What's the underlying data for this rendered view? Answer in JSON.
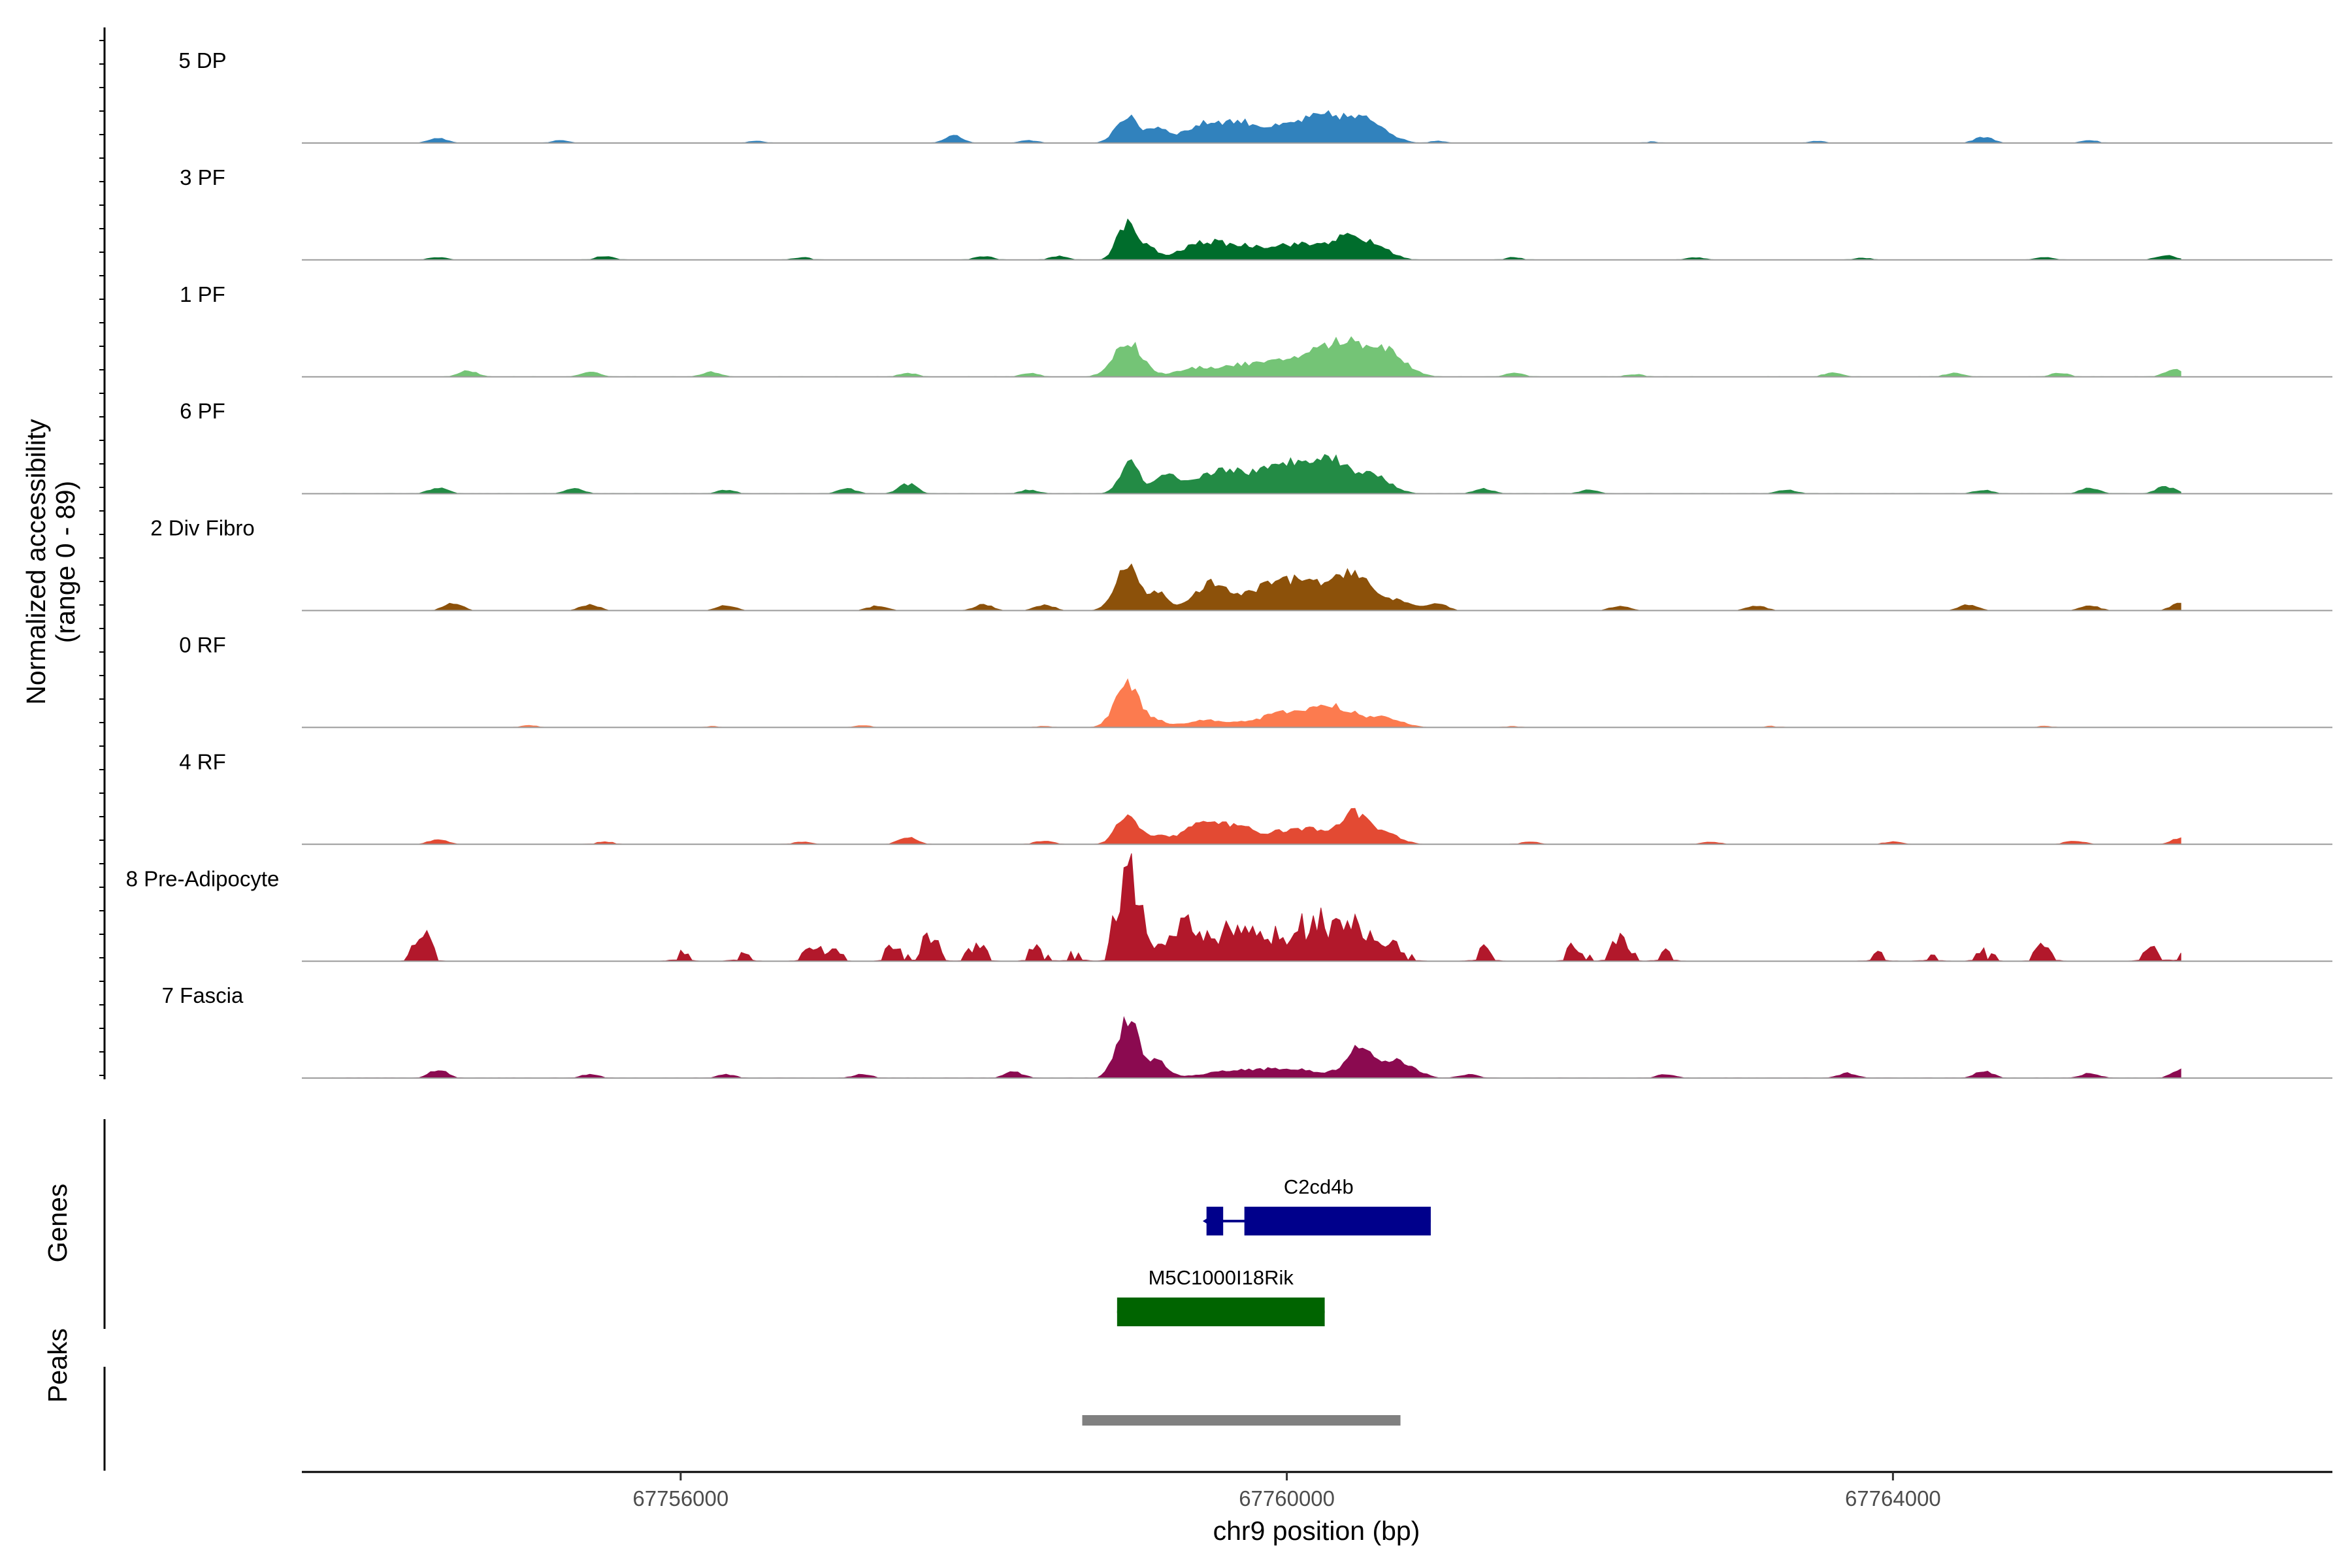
{
  "chart_data": {
    "type": "area",
    "title": "",
    "ylabel_line1": "Normalized accessibility",
    "ylabel_line2": "(range 0 - 89)",
    "ylim": [
      0,
      89
    ],
    "xlabel": "chr9 position (bp)",
    "x_range": [
      67753500,
      67766900
    ],
    "data_x_range": [
      67753700,
      67765900
    ],
    "x_ticks": [
      {
        "value": 67756000,
        "label": "67756000"
      },
      {
        "value": 67760000,
        "label": "67760000"
      },
      {
        "value": 67764000,
        "label": "67764000"
      }
    ],
    "tracks": [
      {
        "name": "5 DP",
        "color": "#3182bd",
        "background": [
          [
            67754400,
            4
          ],
          [
            67755200,
            2
          ],
          [
            67756500,
            1.5
          ],
          [
            67757800,
            6
          ],
          [
            67758300,
            2
          ],
          [
            67761000,
            1.5
          ],
          [
            67762400,
            1
          ],
          [
            67763500,
            1.5
          ],
          [
            67764600,
            5
          ],
          [
            67765300,
            2
          ]
        ],
        "peaks": [
          [
            67758940,
            22,
            70
          ],
          [
            67759140,
            12,
            70
          ],
          [
            67759480,
            16,
            150
          ],
          [
            67759720,
            9,
            110
          ],
          [
            67760050,
            13,
            220
          ],
          [
            67760350,
            17,
            180
          ],
          [
            67760580,
            10,
            100
          ]
        ]
      },
      {
        "name": "3 PF",
        "color": "#006d2c",
        "background": [
          [
            67754400,
            2
          ],
          [
            67755500,
            3
          ],
          [
            67756800,
            2
          ],
          [
            67758000,
            3
          ],
          [
            67758500,
            3
          ],
          [
            67761500,
            2
          ],
          [
            67762700,
            2
          ],
          [
            67763800,
            1.5
          ],
          [
            67765000,
            2
          ],
          [
            67765800,
            4
          ]
        ],
        "peaks": [
          [
            67758940,
            30,
            60
          ],
          [
            67759080,
            10,
            60
          ],
          [
            67759450,
            14,
            140
          ],
          [
            67759700,
            6,
            120
          ],
          [
            67760050,
            13,
            220
          ],
          [
            67760420,
            16,
            120
          ],
          [
            67760620,
            7,
            90
          ]
        ]
      },
      {
        "name": "1 PF",
        "color": "#74c476",
        "background": [
          [
            67754600,
            5
          ],
          [
            67755400,
            4
          ],
          [
            67756200,
            4
          ],
          [
            67757500,
            3
          ],
          [
            67758300,
            3
          ],
          [
            67761500,
            3
          ],
          [
            67762300,
            2
          ],
          [
            67763600,
            3
          ],
          [
            67764400,
            3
          ],
          [
            67765100,
            3
          ],
          [
            67765850,
            6
          ]
        ],
        "peaks": [
          [
            67758950,
            30,
            90
          ],
          [
            67759420,
            7,
            140
          ],
          [
            67759700,
            6,
            120
          ],
          [
            67760000,
            11,
            200
          ],
          [
            67760400,
            28,
            200
          ],
          [
            67760680,
            12,
            110
          ]
        ]
      },
      {
        "name": "6 PF",
        "color": "#238b45",
        "background": [
          [
            67754400,
            5
          ],
          [
            67755300,
            4
          ],
          [
            67756300,
            3
          ],
          [
            67757100,
            4
          ],
          [
            67757500,
            8
          ],
          [
            67758300,
            3
          ],
          [
            67761300,
            4
          ],
          [
            67762000,
            3
          ],
          [
            67763300,
            3
          ],
          [
            67764600,
            3
          ],
          [
            67765300,
            5
          ],
          [
            67765800,
            6
          ]
        ],
        "peaks": [
          [
            67758960,
            27,
            60
          ],
          [
            67759200,
            14,
            80
          ],
          [
            67759550,
            17,
            150
          ],
          [
            67760000,
            22,
            220
          ],
          [
            67760300,
            21,
            160
          ],
          [
            67760600,
            11,
            100
          ]
        ]
      },
      {
        "name": "2 Div Fibro",
        "color": "#8c510a",
        "background": [
          [
            67754500,
            6
          ],
          [
            67755400,
            5
          ],
          [
            67756300,
            4
          ],
          [
            67757300,
            4
          ],
          [
            67758000,
            5
          ],
          [
            67758400,
            5
          ],
          [
            67761000,
            6
          ],
          [
            67762200,
            4
          ],
          [
            67763100,
            4
          ],
          [
            67764500,
            5
          ],
          [
            67765300,
            4
          ],
          [
            67765900,
            7
          ]
        ],
        "peaks": [
          [
            67758950,
            35,
            80
          ],
          [
            67759160,
            14,
            60
          ],
          [
            67759500,
            22,
            110
          ],
          [
            67759850,
            14,
            140
          ],
          [
            67760150,
            24,
            190
          ],
          [
            67760450,
            27,
            90
          ],
          [
            67760700,
            9,
            110
          ]
        ]
      },
      {
        "name": "0 RF",
        "color": "#fc7b4f",
        "background": [
          [
            67755000,
            1.5
          ],
          [
            67756200,
            1
          ],
          [
            67757200,
            1.5
          ],
          [
            67758400,
            1
          ],
          [
            67761500,
            1
          ],
          [
            67763200,
            1
          ],
          [
            67765000,
            1
          ]
        ],
        "peaks": [
          [
            67758950,
            37,
            80
          ],
          [
            67759150,
            5,
            60
          ],
          [
            67759480,
            6,
            140
          ],
          [
            67760000,
            12,
            180
          ],
          [
            67760320,
            15,
            140
          ],
          [
            67760650,
            8,
            110
          ]
        ]
      },
      {
        "name": "4 RF",
        "color": "#e34a33",
        "background": [
          [
            67754400,
            4
          ],
          [
            67755500,
            2
          ],
          [
            67756800,
            2
          ],
          [
            67757500,
            6
          ],
          [
            67758400,
            3
          ],
          [
            67761600,
            2
          ],
          [
            67762800,
            2
          ],
          [
            67764000,
            2
          ],
          [
            67765200,
            3
          ],
          [
            67765900,
            5
          ]
        ],
        "peaks": [
          [
            67758950,
            25,
            70
          ],
          [
            67759150,
            7,
            60
          ],
          [
            67759450,
            18,
            130
          ],
          [
            67759700,
            10,
            100
          ],
          [
            67760100,
            13,
            220
          ],
          [
            67760450,
            22,
            90
          ],
          [
            67760650,
            8,
            100
          ]
        ]
      },
      {
        "name": "8 Pre-Adipocyte",
        "color": "#b2182b",
        "spiky": true,
        "background": [
          [
            67754300,
            24
          ],
          [
            67756000,
            8
          ],
          [
            67756400,
            9
          ],
          [
            67756850,
            12
          ],
          [
            67757000,
            11
          ],
          [
            67757400,
            14
          ],
          [
            67757650,
            26
          ],
          [
            67757950,
            16
          ],
          [
            67758350,
            12
          ],
          [
            67758600,
            9
          ],
          [
            67761300,
            14
          ],
          [
            67761900,
            17
          ],
          [
            67762200,
            24
          ],
          [
            67762500,
            11
          ],
          [
            67763900,
            8
          ],
          [
            67764250,
            7
          ],
          [
            67764600,
            10
          ],
          [
            67765000,
            15
          ],
          [
            67765700,
            13
          ],
          [
            67765900,
            6
          ]
        ],
        "peaks": [
          [
            67758930,
            83,
            55
          ],
          [
            67759000,
            40,
            80
          ],
          [
            67759330,
            36,
            90
          ],
          [
            67759620,
            22,
            110
          ],
          [
            67760000,
            25,
            240
          ],
          [
            67760350,
            30,
            170
          ],
          [
            67760650,
            16,
            110
          ]
        ]
      },
      {
        "name": "7 Fascia",
        "color": "#8b0a50",
        "background": [
          [
            67754400,
            7
          ],
          [
            67755400,
            3
          ],
          [
            67756300,
            3
          ],
          [
            67757200,
            3
          ],
          [
            67758200,
            5
          ],
          [
            67761200,
            3
          ],
          [
            67762500,
            3
          ],
          [
            67763700,
            4
          ],
          [
            67764600,
            6
          ],
          [
            67765300,
            4
          ],
          [
            67765900,
            7
          ]
        ],
        "peaks": [
          [
            67758950,
            50,
            70
          ],
          [
            67759150,
            13,
            70
          ],
          [
            67759600,
            5,
            160
          ],
          [
            67760000,
            8,
            200
          ],
          [
            67760480,
            24,
            90
          ],
          [
            67760750,
            14,
            100
          ]
        ]
      }
    ],
    "genes": [
      {
        "name": "C2cd4b",
        "color": "#00008b",
        "start": 67759470,
        "end": 67760950,
        "strand": "-",
        "exons": [
          [
            67759470,
            67759580
          ],
          [
            67759720,
            67760950
          ]
        ]
      },
      {
        "name": "M5C1000I18Rik",
        "color": "#006400",
        "start": 67758880,
        "end": 67760250,
        "strand": "+",
        "exons": [
          [
            67758880,
            67760250
          ]
        ]
      }
    ],
    "peak_regions": [
      [
        67758650,
        67760750
      ]
    ],
    "peak_color": "#808080",
    "panel_labels": {
      "genes": "Genes",
      "peaks": "Peaks"
    }
  }
}
